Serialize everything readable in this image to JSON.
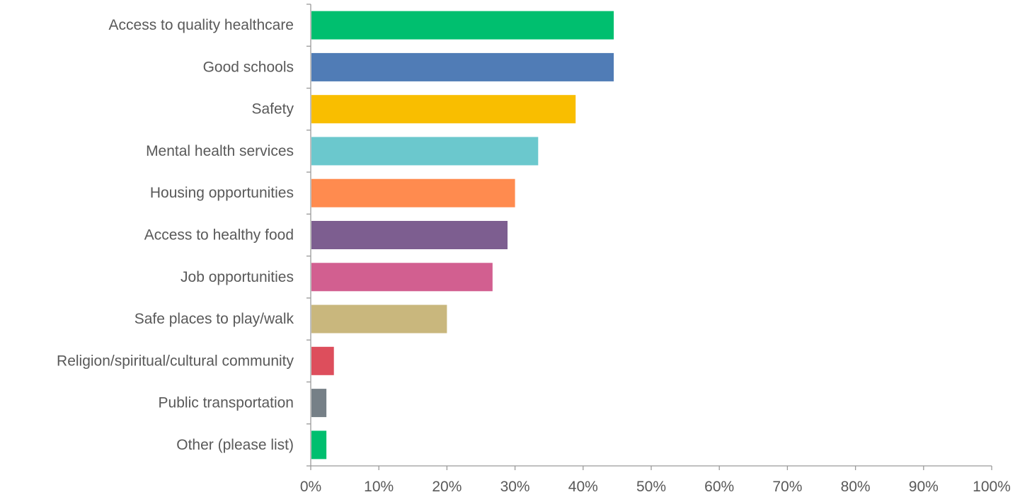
{
  "chart_data": {
    "type": "bar",
    "orientation": "horizontal",
    "title": "",
    "xlabel": "",
    "ylabel": "",
    "categories": [
      "Access to quality healthcare",
      "Good schools",
      "Safety",
      "Mental health services",
      "Housing opportunities",
      "Access to healthy food",
      "Job opportunities",
      "Safe places to play/walk",
      "Religion/spiritual/cultural community",
      "Public transportation",
      "Other (please list)"
    ],
    "values": [
      44.5,
      44.5,
      38.9,
      33.4,
      30.0,
      28.9,
      26.7,
      20.0,
      3.4,
      2.3,
      2.3
    ],
    "colors": [
      "#00BF6F",
      "#507CB6",
      "#F9BE00",
      "#6BC8CD",
      "#FF8B4F",
      "#7D5E90",
      "#D25F90",
      "#C9B77D",
      "#DD4E5C",
      "#768087",
      "#00BF6F"
    ],
    "xlim": [
      0,
      100
    ],
    "xticks": [
      0,
      10,
      20,
      30,
      40,
      50,
      60,
      70,
      80,
      90,
      100
    ],
    "tick_suffix": "%",
    "grid": false,
    "legend": "none"
  }
}
